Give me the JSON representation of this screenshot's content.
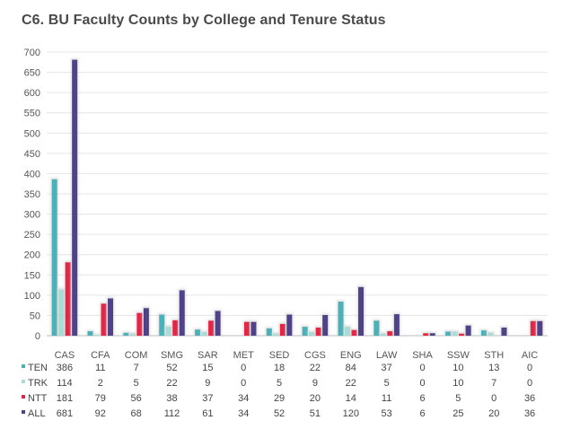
{
  "title": "C6. BU Faculty Counts by College and Tenure Status",
  "chart_data": {
    "type": "bar",
    "title": "C6. BU Faculty Counts by College and Tenure Status",
    "categories": [
      "CAS",
      "CFA",
      "COM",
      "SMG",
      "SAR",
      "MET",
      "SED",
      "CGS",
      "ENG",
      "LAW",
      "SHA",
      "SSW",
      "STH",
      "AIC"
    ],
    "ylim": [
      0,
      700
    ],
    "yticks": [
      0,
      50,
      100,
      150,
      200,
      250,
      300,
      350,
      400,
      450,
      500,
      550,
      600,
      650,
      700
    ],
    "grid": true,
    "legend": "table-below",
    "series": [
      {
        "name": "TEN",
        "color": "#4bb0b8",
        "values": [
          386,
          11,
          7,
          52,
          15,
          0,
          18,
          22,
          84,
          37,
          0,
          10,
          13,
          0
        ]
      },
      {
        "name": "TRK",
        "color": "#a8dcd6",
        "values": [
          114,
          2,
          5,
          22,
          9,
          0,
          5,
          9,
          22,
          5,
          0,
          10,
          7,
          0
        ]
      },
      {
        "name": "NTT",
        "color": "#e32645",
        "values": [
          181,
          79,
          56,
          38,
          37,
          34,
          29,
          20,
          14,
          11,
          6,
          5,
          0,
          36
        ]
      },
      {
        "name": "ALL",
        "color": "#4f4288",
        "values": [
          681,
          92,
          68,
          112,
          61,
          34,
          52,
          51,
          120,
          53,
          6,
          25,
          20,
          36
        ]
      }
    ]
  }
}
